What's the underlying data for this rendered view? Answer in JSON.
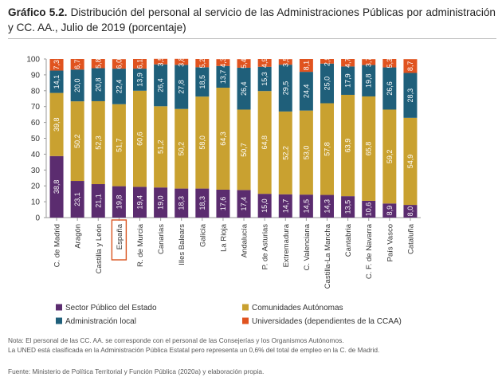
{
  "header": {
    "label": "Gráfico 5.2.",
    "text": "Distribución del personal al servicio de las Administraciones Públicas por administración y CC. AA., Julio de 2019 (porcentaje)"
  },
  "chart_data": {
    "type": "bar",
    "stacked": true,
    "title": "Gráfico 5.2. Distribución del personal al servicio de las Administraciones Públicas por administración y CC. AA., Julio de 2019 (porcentaje)",
    "xlabel": "",
    "ylabel": "",
    "ylim": [
      0,
      100
    ],
    "yticks": [
      0,
      10,
      20,
      30,
      40,
      50,
      60,
      70,
      80,
      90,
      100
    ],
    "grid": false,
    "legend_position": "bottom",
    "highlighted_category": "España",
    "categories": [
      "C. de Madrid",
      "Aragón",
      "Castilla y León",
      "España",
      "R. de Murcia",
      "Canarias",
      "Illes Balears",
      "Galicia",
      "La Rioja",
      "Andalucía",
      "P. de Asturias",
      "Extremadura",
      "C. Valenciana",
      "Castilla-La Mancha",
      "Cantabria",
      "C. F. de Navarra",
      "País Vasco",
      "Cataluña"
    ],
    "series": [
      {
        "name": "Sector Público del Estado",
        "color": "#5b2c6f",
        "values": [
          38.8,
          23.1,
          21.1,
          19.8,
          19.4,
          19.0,
          18.3,
          18.3,
          17.6,
          17.4,
          15.0,
          14.7,
          14.5,
          14.3,
          13.5,
          10.6,
          8.9,
          8.0
        ],
        "labels": [
          "38,8",
          "23,1",
          "21,1",
          "19,8",
          "19,4",
          "19,0",
          "18,3",
          "18,3",
          "17,6",
          "17,4",
          "15,0",
          "14,7",
          "14,5",
          "14,3",
          "13,5",
          "10,6",
          "8,9",
          "8,0"
        ]
      },
      {
        "name": "Comunidades Autónomas",
        "color": "#c9a130",
        "values": [
          39.8,
          50.2,
          52.3,
          51.7,
          60.6,
          51.2,
          50.2,
          58.0,
          64.3,
          50.7,
          64.8,
          52.2,
          53.0,
          57.8,
          63.9,
          65.8,
          59.2,
          54.9
        ],
        "labels": [
          "39,8",
          "50,2",
          "52,3",
          "51,7",
          "60,6",
          "51,2",
          "50,2",
          "58,0",
          "64,3",
          "50,7",
          "64,8",
          "52,2",
          "53,0",
          "57,8",
          "63,9",
          "65,8",
          "59,2",
          "54,9"
        ]
      },
      {
        "name": "Administración local",
        "color": "#1f5f7a",
        "values": [
          14.1,
          20.0,
          20.8,
          22.4,
          13.9,
          26.4,
          27.8,
          18.5,
          13.7,
          26.4,
          15.3,
          29.5,
          24.4,
          25.0,
          17.9,
          19.8,
          26.6,
          28.3
        ],
        "labels": [
          "14,1",
          "20,0",
          "20,8",
          "22,4",
          "13,9",
          "26,4",
          "27,8",
          "18,5",
          "13,7",
          "26,4",
          "15,3",
          "29,5",
          "24,4",
          "25,0",
          "17,9",
          "19,8",
          "26,6",
          "28,3"
        ]
      },
      {
        "name": "Universidades (dependientes de la CCAA)",
        "color": "#e0531f",
        "values": [
          7.3,
          6.7,
          5.8,
          6.0,
          6.1,
          3.5,
          3.8,
          5.2,
          4.3,
          5.4,
          4.9,
          3.5,
          8.1,
          2.9,
          4.7,
          3.7,
          5.3,
          8.7
        ],
        "labels": [
          "7,3",
          "6,7",
          "5,8",
          "6,0",
          "6,1",
          "3,5",
          "3,8",
          "5,2",
          "4,3",
          "5,4",
          "4,9",
          "3,5",
          "8,1",
          "2,9",
          "4,7",
          "3,7",
          "5,3",
          "8,7"
        ]
      }
    ]
  },
  "notes": {
    "line1": "Nota: El personal de las CC. AA. se corresponde con el personal de las Consejerías y los Organismos Autónomos.",
    "line2": "La UNED está clasificada en la Administración Pública Estatal pero representa un 0,6% del total de empleo en la C. de Madrid.",
    "source": "Fuente: Ministerio de Política Territorial y Función Pública (2020a) y elaboración propia."
  }
}
